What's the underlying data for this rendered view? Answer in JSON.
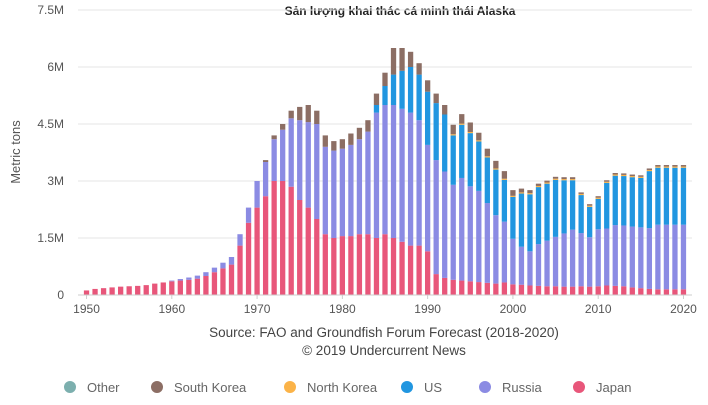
{
  "chart_data": {
    "type": "bar",
    "stacked": true,
    "title": "Sản lượng khai thác cá minh thái Alaska",
    "ylabel": "Metric tons",
    "xlabel": "",
    "source_line1": "Source: FAO and Groundfish Forum Forecast (2018-2020)",
    "source_line2": "© 2019 Undercurrent News",
    "x_ticks": [
      1950,
      1960,
      1970,
      1980,
      1990,
      2000,
      2010,
      2020
    ],
    "y_ticks": [
      {
        "value": 0,
        "label": "0"
      },
      {
        "value": 1500000,
        "label": "1.5M"
      },
      {
        "value": 3000000,
        "label": "3M"
      },
      {
        "value": 4500000,
        "label": "4.5M"
      },
      {
        "value": 6000000,
        "label": "6M"
      },
      {
        "value": 7500000,
        "label": "7.5M"
      }
    ],
    "ylim": [
      0,
      7500000
    ],
    "xlim": [
      1949,
      2021
    ],
    "grid": true,
    "legend_position": "bottom",
    "colors": {
      "Other": "#7cafae",
      "South Korea": "#8c6e64",
      "North Korea": "#fbb348",
      "US": "#2196e0",
      "Russia": "#8b8be3",
      "Japan": "#e8567a"
    },
    "series_order": [
      "Japan",
      "Russia",
      "US",
      "North Korea",
      "South Korea",
      "Other"
    ],
    "legend_order": [
      "Other",
      "South Korea",
      "North Korea",
      "US",
      "Russia",
      "Japan"
    ],
    "years": [
      1950,
      1951,
      1952,
      1953,
      1954,
      1955,
      1956,
      1957,
      1958,
      1959,
      1960,
      1961,
      1962,
      1963,
      1964,
      1965,
      1966,
      1967,
      1968,
      1969,
      1970,
      1971,
      1972,
      1973,
      1974,
      1975,
      1976,
      1977,
      1978,
      1979,
      1980,
      1981,
      1982,
      1983,
      1984,
      1985,
      1986,
      1987,
      1988,
      1989,
      1990,
      1991,
      1992,
      1993,
      1994,
      1995,
      1996,
      1997,
      1998,
      1999,
      2000,
      2001,
      2002,
      2003,
      2004,
      2005,
      2006,
      2007,
      2008,
      2009,
      2010,
      2011,
      2012,
      2013,
      2014,
      2015,
      2016,
      2017,
      2018,
      2019,
      2020
    ],
    "series": [
      {
        "name": "Japan",
        "values": [
          120000,
          160000,
          180000,
          200000,
          220000,
          230000,
          240000,
          260000,
          300000,
          330000,
          360000,
          380000,
          400000,
          430000,
          500000,
          600000,
          700000,
          800000,
          1300000,
          1900000,
          2300000,
          2600000,
          3000000,
          3000000,
          2850000,
          2500000,
          2300000,
          2000000,
          1600000,
          1500000,
          1550000,
          1550000,
          1600000,
          1600000,
          1500000,
          1600000,
          1500000,
          1400000,
          1300000,
          1300000,
          1150000,
          550000,
          450000,
          400000,
          380000,
          360000,
          340000,
          320000,
          300000,
          330000,
          280000,
          270000,
          250000,
          240000,
          230000,
          230000,
          220000,
          220000,
          230000,
          220000,
          230000,
          250000,
          240000,
          230000,
          200000,
          180000,
          160000,
          150000,
          150000,
          150000,
          150000
        ]
      },
      {
        "name": "Russia",
        "values": [
          0,
          0,
          0,
          0,
          0,
          0,
          0,
          0,
          0,
          0,
          20000,
          40000,
          60000,
          80000,
          100000,
          120000,
          150000,
          200000,
          300000,
          400000,
          700000,
          900000,
          1100000,
          1350000,
          1800000,
          2100000,
          2250000,
          2500000,
          2300000,
          2300000,
          2300000,
          2400000,
          2500000,
          2700000,
          3300000,
          3400000,
          3500000,
          3500000,
          3500000,
          3300000,
          2800000,
          3000000,
          2800000,
          2500000,
          2700000,
          2500000,
          2400000,
          2100000,
          1800000,
          1600000,
          1200000,
          1000000,
          900000,
          1100000,
          1200000,
          1300000,
          1400000,
          1500000,
          1400000,
          1300000,
          1500000,
          1500000,
          1600000,
          1600000,
          1600000,
          1600000,
          1600000,
          1700000,
          1700000,
          1700000,
          1700000
        ]
      },
      {
        "name": "US",
        "values": [
          0,
          0,
          0,
          0,
          0,
          0,
          0,
          0,
          0,
          0,
          0,
          0,
          0,
          0,
          0,
          0,
          0,
          0,
          0,
          0,
          0,
          0,
          0,
          0,
          0,
          0,
          0,
          0,
          0,
          0,
          0,
          0,
          0,
          0,
          200000,
          500000,
          800000,
          1000000,
          1200000,
          1200000,
          1400000,
          1500000,
          1500000,
          1300000,
          1400000,
          1400000,
          1300000,
          1200000,
          1200000,
          1100000,
          1100000,
          1400000,
          1500000,
          1500000,
          1500000,
          1500000,
          1400000,
          1300000,
          1000000,
          800000,
          800000,
          1200000,
          1300000,
          1300000,
          1300000,
          1300000,
          1500000,
          1500000,
          1500000,
          1500000,
          1500000
        ]
      },
      {
        "name": "North Korea",
        "values": [
          0,
          0,
          0,
          0,
          0,
          0,
          0,
          0,
          0,
          0,
          0,
          0,
          0,
          0,
          0,
          0,
          0,
          0,
          0,
          0,
          0,
          0,
          0,
          0,
          0,
          0,
          0,
          0,
          0,
          0,
          0,
          0,
          0,
          0,
          0,
          0,
          0,
          0,
          0,
          0,
          0,
          0,
          0,
          30000,
          30000,
          30000,
          30000,
          30000,
          30000,
          30000,
          30000,
          30000,
          30000,
          30000,
          30000,
          30000,
          30000,
          30000,
          30000,
          30000,
          30000,
          30000,
          30000,
          30000,
          30000,
          30000,
          30000,
          30000,
          30000,
          30000,
          30000
        ]
      },
      {
        "name": "South Korea",
        "values": [
          0,
          0,
          0,
          0,
          0,
          0,
          0,
          0,
          0,
          0,
          0,
          0,
          0,
          0,
          0,
          0,
          0,
          0,
          0,
          0,
          0,
          50000,
          100000,
          150000,
          200000,
          350000,
          450000,
          350000,
          300000,
          250000,
          250000,
          300000,
          300000,
          300000,
          300000,
          350000,
          700000,
          600000,
          400000,
          300000,
          300000,
          250000,
          250000,
          250000,
          250000,
          250000,
          200000,
          200000,
          200000,
          200000,
          150000,
          100000,
          80000,
          60000,
          50000,
          50000,
          50000,
          50000,
          40000,
          40000,
          40000,
          40000,
          40000,
          40000,
          40000,
          40000,
          40000,
          40000,
          40000,
          40000,
          40000
        ]
      },
      {
        "name": "Other",
        "values": [
          0,
          0,
          0,
          0,
          0,
          0,
          0,
          0,
          0,
          0,
          0,
          0,
          0,
          0,
          0,
          0,
          0,
          0,
          0,
          0,
          0,
          0,
          0,
          0,
          0,
          0,
          0,
          0,
          0,
          0,
          0,
          0,
          0,
          0,
          0,
          0,
          0,
          0,
          0,
          0,
          0,
          0,
          0,
          0,
          0,
          0,
          0,
          0,
          0,
          0,
          0,
          0,
          0,
          0,
          0,
          0,
          0,
          0,
          0,
          0,
          0,
          0,
          0,
          0,
          0,
          0,
          0,
          0,
          0,
          0,
          0
        ]
      }
    ]
  }
}
